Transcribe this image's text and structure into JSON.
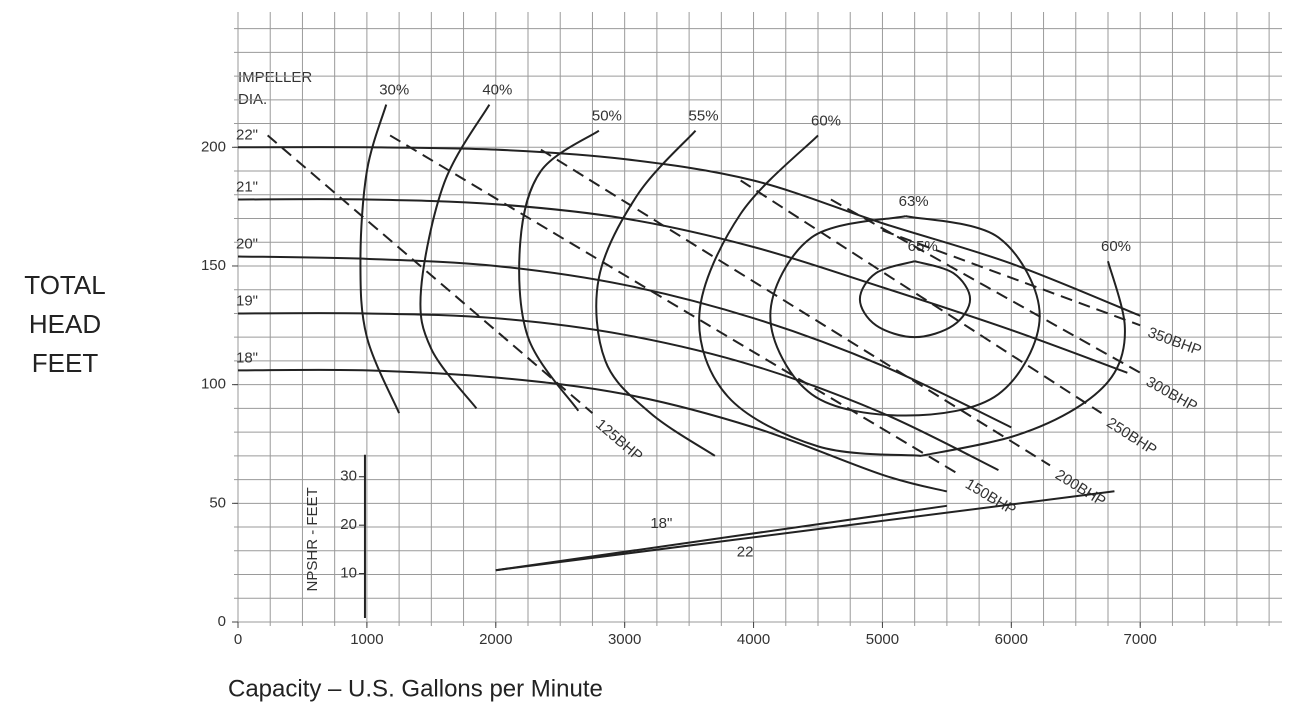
{
  "chart_data": {
    "type": "line",
    "y_label": [
      "TOTAL",
      "HEAD",
      "FEET"
    ],
    "x_label": "Capacity – U.S. Gallons per Minute",
    "annotation": [
      "IMPELLER",
      "DIA."
    ],
    "y2_label": "NPSHR - FEET",
    "color": "#222",
    "grid_color": "#9a9a9a",
    "xlim": [
      0,
      8100
    ],
    "ylim": [
      0,
      257
    ],
    "y2lim": [
      0,
      126
    ],
    "xticks": [
      0,
      1000,
      2000,
      3000,
      4000,
      5000,
      6000,
      7000
    ],
    "yticks": [
      0,
      50,
      100,
      150,
      200
    ],
    "y2ticks": [
      10,
      20,
      30
    ],
    "xgrid": [
      0,
      250,
      500,
      750,
      1000,
      1250,
      1500,
      1750,
      2000,
      2250,
      2500,
      2750,
      3000,
      3250,
      3500,
      3750,
      4000,
      4250,
      4500,
      4750,
      5000,
      5250,
      5500,
      5750,
      6000,
      6250,
      6500,
      6750,
      7000,
      7250,
      7500,
      7750,
      8000
    ],
    "ygrid": [
      0,
      10,
      20,
      30,
      40,
      50,
      60,
      70,
      80,
      90,
      100,
      110,
      120,
      130,
      140,
      150,
      160,
      170,
      180,
      190,
      200,
      210,
      220,
      230,
      240,
      250
    ],
    "series": [
      {
        "name": "22\"",
        "x": [
          0,
          1000,
          2000,
          3000,
          4000,
          5000,
          6000,
          7000
        ],
        "y": [
          200,
          200,
          199,
          195,
          186,
          168,
          151,
          129
        ]
      },
      {
        "name": "21\"",
        "x": [
          0,
          1000,
          2000,
          3000,
          4000,
          5000,
          6000,
          6900
        ],
        "y": [
          178,
          178,
          176,
          170,
          158,
          141,
          123,
          105
        ]
      },
      {
        "name": "20\"",
        "x": [
          0,
          1000,
          2000,
          3000,
          4000,
          5000,
          6000
        ],
        "y": [
          154,
          153,
          150,
          142,
          128,
          108,
          82
        ]
      },
      {
        "name": "19\"",
        "x": [
          0,
          1000,
          2000,
          3000,
          4000,
          5000,
          5900
        ],
        "y": [
          130,
          130,
          128,
          121,
          108,
          88,
          64
        ]
      },
      {
        "name": "18\"",
        "x": [
          0,
          1000,
          2000,
          3000,
          4000,
          5000,
          5500
        ],
        "y": [
          106,
          106,
          103,
          96,
          82,
          62,
          55
        ]
      },
      {
        "name": "30%",
        "x": [
          1150,
          1000,
          950,
          1000,
          1250
        ],
        "y": [
          218,
          190,
          152,
          120,
          88
        ]
      },
      {
        "name": "40%",
        "x": [
          1950,
          1600,
          1420,
          1500,
          1850
        ],
        "y": [
          218,
          185,
          140,
          115,
          90
        ]
      },
      {
        "name": "50%",
        "x": [
          2800,
          2350,
          2190,
          2250,
          2640
        ],
        "y": [
          207,
          190,
          160,
          120,
          89
        ]
      },
      {
        "name": "55%",
        "x": [
          3550,
          3100,
          2800,
          2850,
          3200,
          3700
        ],
        "y": [
          207,
          180,
          145,
          110,
          88,
          70
        ]
      },
      {
        "name": "60%",
        "x": [
          4500,
          3900,
          3580,
          3800,
          4500,
          5300
        ],
        "y": [
          205,
          172,
          130,
          95,
          74,
          70
        ]
      },
      {
        "name": "60%",
        "x": [
          6750,
          6880,
          6800,
          6500,
          6000,
          5300
        ],
        "y": [
          152,
          125,
          105,
          90,
          78,
          70
        ]
      },
      {
        "name": "63%",
        "x": [
          5180,
          5900,
          6220,
          5900,
          5180,
          4450,
          4130,
          4450,
          5180
        ],
        "y": [
          171,
          162,
          129,
          96,
          87,
          96,
          129,
          162,
          171
        ]
      },
      {
        "name": "65%",
        "x": [
          5250,
          5550,
          5680,
          5550,
          5250,
          4950,
          4825,
          4950,
          5250
        ],
        "y": [
          152,
          147,
          136,
          125,
          120,
          125,
          136,
          147,
          152
        ]
      },
      {
        "name": "125BHP",
        "dash": true,
        "x": [
          230,
          2750
        ],
        "y": [
          205,
          88
        ]
      },
      {
        "name": "150BHP",
        "dash": true,
        "x": [
          1180,
          5600
        ],
        "y": [
          205,
          62
        ]
      },
      {
        "name": "200BHP",
        "dash": true,
        "x": [
          2350,
          6300
        ],
        "y": [
          199,
          66
        ]
      },
      {
        "name": "250BHP",
        "dash": true,
        "x": [
          3900,
          6700
        ],
        "y": [
          186,
          88
        ]
      },
      {
        "name": "300BHP",
        "dash": true,
        "x": [
          4600,
          7000
        ],
        "y": [
          178,
          105
        ]
      },
      {
        "name": "350BHP",
        "dash": true,
        "x": [
          5000,
          7000
        ],
        "y": [
          165,
          125
        ]
      },
      {
        "name": "18\"",
        "axis": "y2",
        "x": [
          2000,
          5500
        ],
        "y": [
          10.7,
          24
        ]
      },
      {
        "name": "22",
        "axis": "y2",
        "x": [
          2000,
          6800
        ],
        "y": [
          10.7,
          27
        ]
      }
    ]
  }
}
